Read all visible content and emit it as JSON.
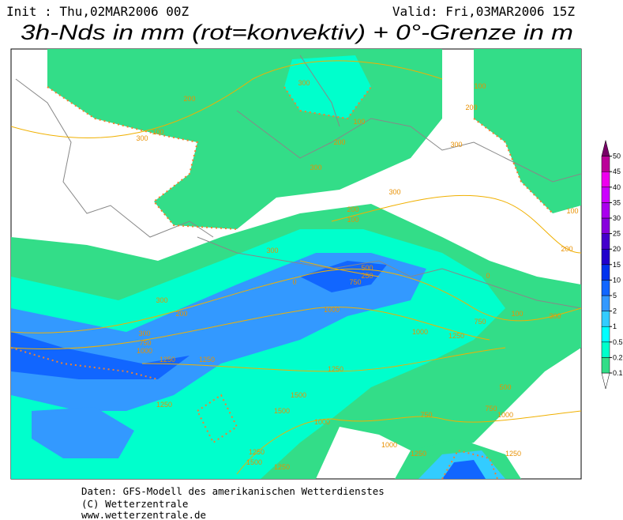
{
  "header": {
    "init": "Init : Thu,02MAR2006 00Z",
    "valid": "Valid: Fri,03MAR2006 15Z",
    "title": "3h-Nds in mm (rot=konvektiv) + 0°-Grenze in m"
  },
  "colorbar": {
    "levels": [
      0.1,
      0.2,
      0.5,
      1,
      2,
      5,
      10,
      15,
      20,
      25,
      30,
      35,
      40,
      45,
      50
    ],
    "colors": [
      "#ffffff",
      "#33dd88",
      "#00ffcc",
      "#00ffff",
      "#33ccff",
      "#3399ff",
      "#1166ff",
      "#0033ee",
      "#2200cc",
      "#4400cc",
      "#8800dd",
      "#aa00ee",
      "#cc00ff",
      "#ee00ee",
      "#bb0099",
      "#770066"
    ]
  },
  "contour_labels": [
    "200",
    "300",
    "100",
    "300",
    "200",
    "300",
    "100",
    "200",
    "100",
    "300",
    "300",
    "200",
    "100",
    "300",
    "200",
    "300",
    "300",
    "750",
    "1000",
    "1250",
    "1250",
    "1000",
    "1000",
    "750",
    "1250",
    "100",
    "300",
    "200",
    "1250",
    "1500",
    "1500",
    "1000",
    "750",
    "500",
    "750",
    "1000",
    "1000",
    "1250",
    "1250",
    "1250",
    "1500",
    "1250",
    "1250",
    "0",
    "750",
    "500",
    "250",
    "0",
    "100"
  ],
  "footer": [
    "Daten: GFS-Modell des amerikanischen Wetterdienstes",
    "(C) Wetterzentrale",
    "www.wetterzentrale.de"
  ]
}
